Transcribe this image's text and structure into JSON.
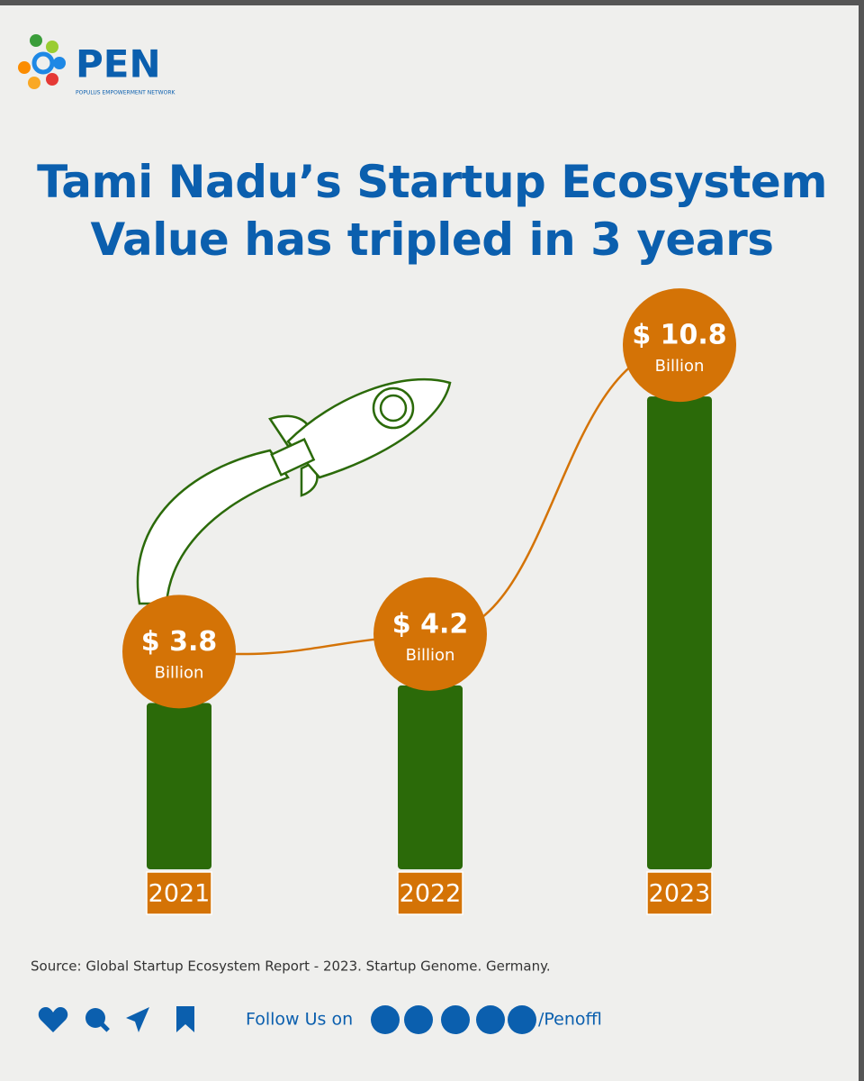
{
  "brand": {
    "name": "PEN",
    "tagline": "POPULUS EMPOWERMENT NETWORK"
  },
  "chart_data": {
    "type": "bar",
    "title": "Tami Nadu’s Startup Ecosystem Value has tripled in 3 years",
    "categories": [
      "2021",
      "2022",
      "2023"
    ],
    "values": [
      3.8,
      4.2,
      10.8
    ],
    "value_labels": [
      "$ 3.8",
      "$ 4.2",
      "$ 10.8"
    ],
    "unit_label": "Billion",
    "color": "#2b6a09",
    "label_color": "#d47306"
  },
  "source": "Source: Global Startup Ecosystem Report - 2023. Startup Genome. Germany.",
  "footer": {
    "follow": "Follow Us on",
    "handle": "/Penoffl"
  }
}
